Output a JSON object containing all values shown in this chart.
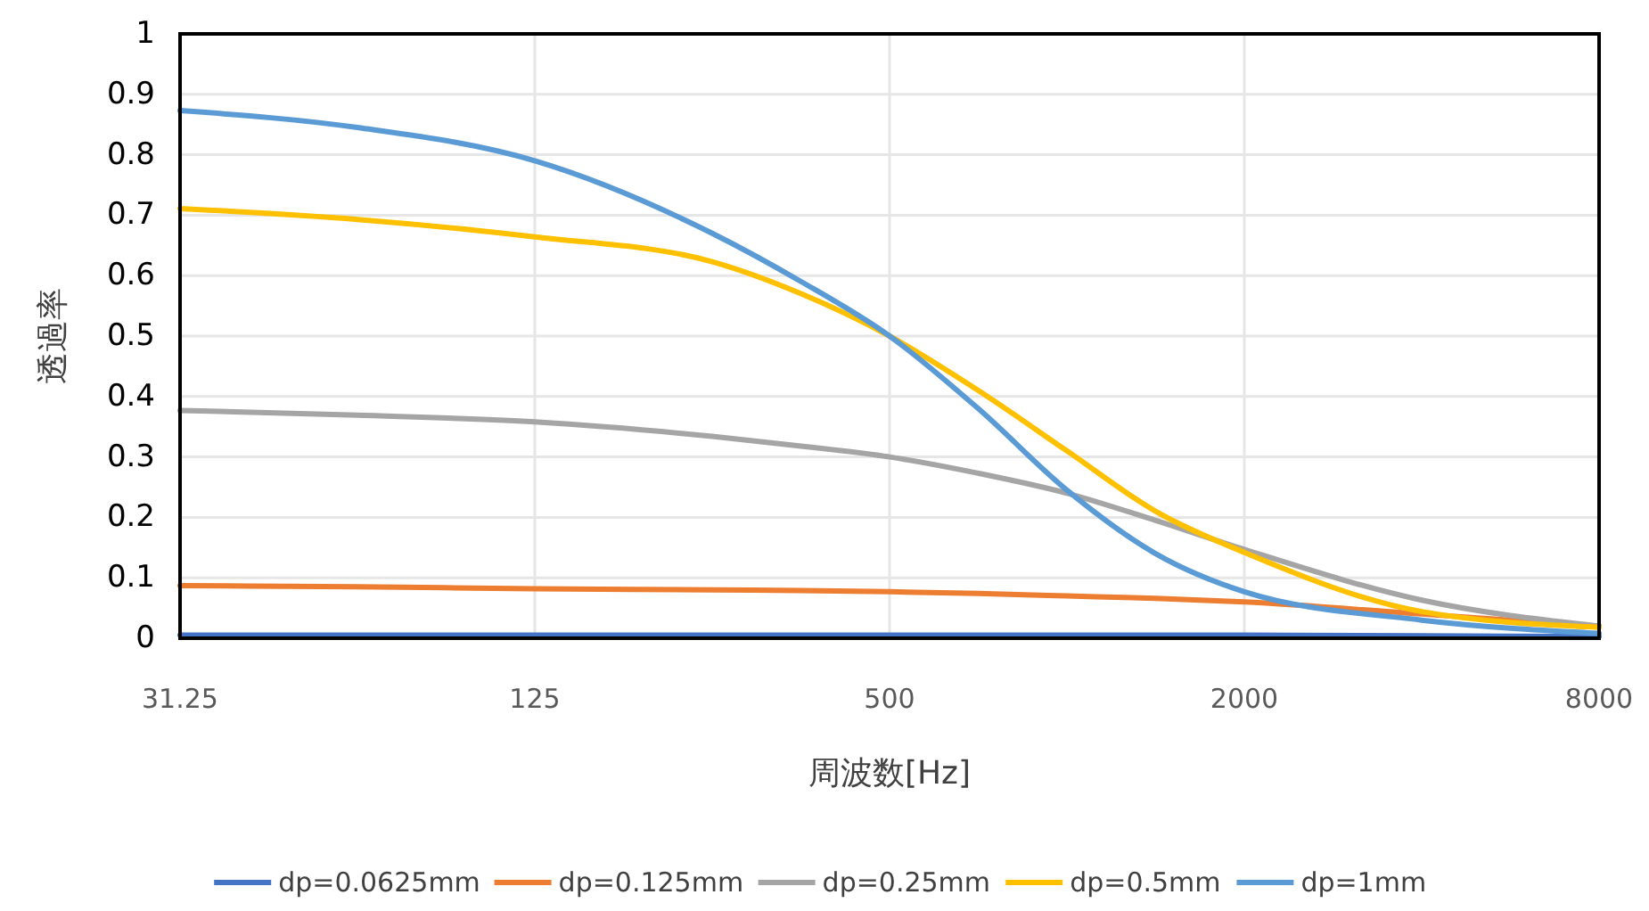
{
  "chart_data": {
    "type": "line",
    "xlabel": "周波数[Hz]",
    "ylabel": "透過率",
    "x": [
      31.25,
      62.5,
      125,
      250,
      354,
      500,
      707,
      1000,
      1414,
      2000,
      4000,
      8000
    ],
    "series": [
      {
        "name": "dp=0.0625mm",
        "color": "#4472c4",
        "values": [
          0.005,
          0.005,
          0.005,
          0.005,
          0.005,
          0.005,
          0.005,
          0.005,
          0.005,
          0.005,
          0.004,
          0.003
        ]
      },
      {
        "name": "dp=0.125mm",
        "color": "#ed7d31",
        "values": [
          0.087,
          0.085,
          0.082,
          0.08,
          0.079,
          0.077,
          0.074,
          0.07,
          0.066,
          0.06,
          0.04,
          0.02
        ]
      },
      {
        "name": "dp=0.25mm",
        "color": "#a5a5a5",
        "values": [
          0.377,
          0.369,
          0.358,
          0.334,
          0.318,
          0.3,
          0.273,
          0.24,
          0.195,
          0.147,
          0.063,
          0.02
        ]
      },
      {
        "name": "dp=0.5mm",
        "color": "#ffc000",
        "values": [
          0.711,
          0.693,
          0.664,
          0.623,
          0.57,
          0.5,
          0.41,
          0.31,
          0.21,
          0.142,
          0.044,
          0.018
        ]
      },
      {
        "name": "dp=1mm",
        "color": "#5b9bd5",
        "values": [
          0.873,
          0.845,
          0.79,
          0.67,
          0.59,
          0.5,
          0.38,
          0.245,
          0.14,
          0.077,
          0.03,
          0.008
        ]
      }
    ],
    "log": "x",
    "xlim": [
      31.25,
      8000
    ],
    "xticks": [
      31.25,
      125,
      500,
      2000,
      8000
    ],
    "ylim": [
      0,
      1
    ],
    "yticks": [
      0,
      0.1,
      0.2,
      0.3,
      0.4,
      0.5,
      0.6,
      0.7,
      0.8,
      0.9,
      1
    ],
    "grid": true,
    "legend": "bottom",
    "marker": "none",
    "line_style": "solid"
  }
}
